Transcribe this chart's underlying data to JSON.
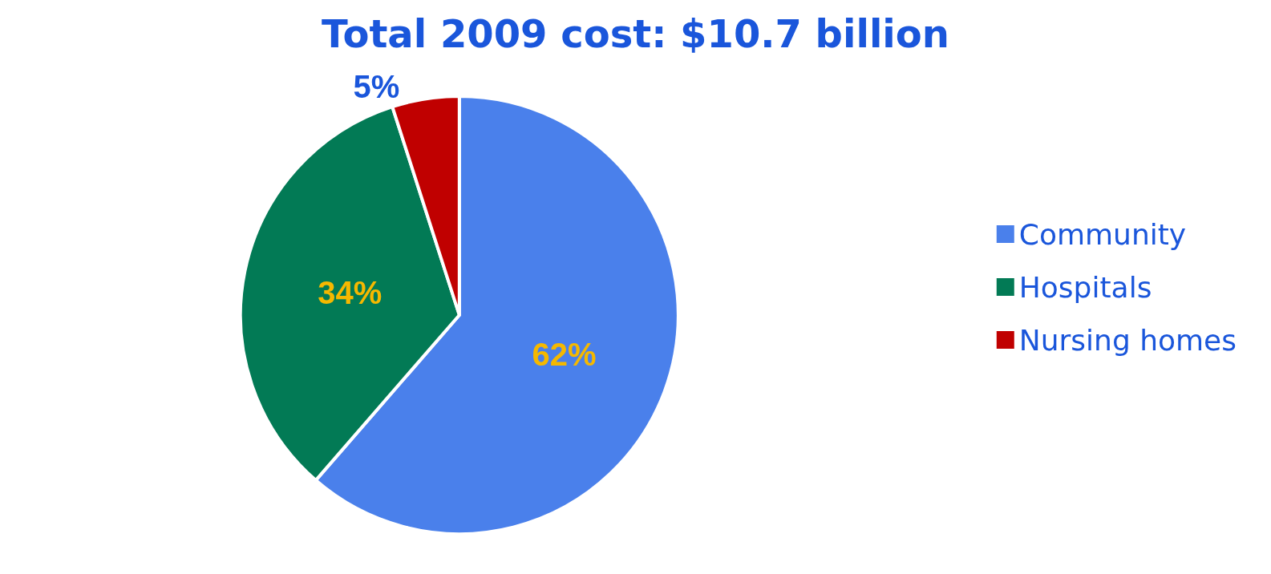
{
  "chart_data": {
    "type": "pie",
    "title": "Total 2009 cost: $10.7 billion",
    "categories": [
      "Community",
      "Hospitals",
      "Nursing homes"
    ],
    "values": [
      62,
      34,
      5
    ],
    "value_labels": [
      "62%",
      "34%",
      "5%"
    ],
    "colors": [
      "#4a80eb",
      "#027a55",
      "#c00000"
    ],
    "legend": "right"
  }
}
